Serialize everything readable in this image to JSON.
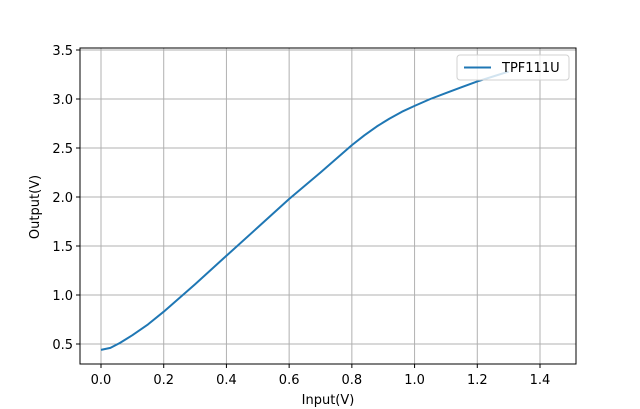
{
  "chart_data": {
    "type": "line",
    "title": "",
    "xlabel": "Input(V)",
    "ylabel": "Output(V)",
    "xlim": [
      -0.07,
      1.5
    ],
    "ylim": [
      0.28,
      3.52
    ],
    "xticks": [
      0.0,
      0.2,
      0.4,
      0.6,
      0.8,
      1.0,
      1.2,
      1.4
    ],
    "xtick_labels": [
      "0.0",
      "0.2",
      "0.4",
      "0.6",
      "0.8",
      "1.0",
      "1.2",
      "1.4"
    ],
    "yticks": [
      0.5,
      1.0,
      1.5,
      2.0,
      2.5,
      3.0,
      3.5
    ],
    "ytick_labels": [
      "0.5",
      "1.0",
      "1.5",
      "2.0",
      "2.5",
      "3.0",
      "3.5"
    ],
    "grid": true,
    "legend_position": "upper right",
    "series": [
      {
        "name": "TPF111U",
        "color": "#1f77b4",
        "x": [
          0.0,
          0.03,
          0.06,
          0.1,
          0.15,
          0.2,
          0.3,
          0.4,
          0.5,
          0.6,
          0.7,
          0.8,
          0.84,
          0.88,
          0.92,
          0.96,
          1.0,
          1.05,
          1.1,
          1.15,
          1.2,
          1.25,
          1.3
        ],
        "y": [
          0.44,
          0.46,
          0.51,
          0.59,
          0.7,
          0.83,
          1.11,
          1.4,
          1.69,
          1.98,
          2.25,
          2.53,
          2.63,
          2.72,
          2.8,
          2.87,
          2.93,
          3.0,
          3.06,
          3.12,
          3.18,
          3.23,
          3.28
        ]
      }
    ]
  },
  "legend": {
    "label": "TPF111U"
  },
  "axes": {
    "xlabel": "Input(V)",
    "ylabel": "Output(V)"
  }
}
